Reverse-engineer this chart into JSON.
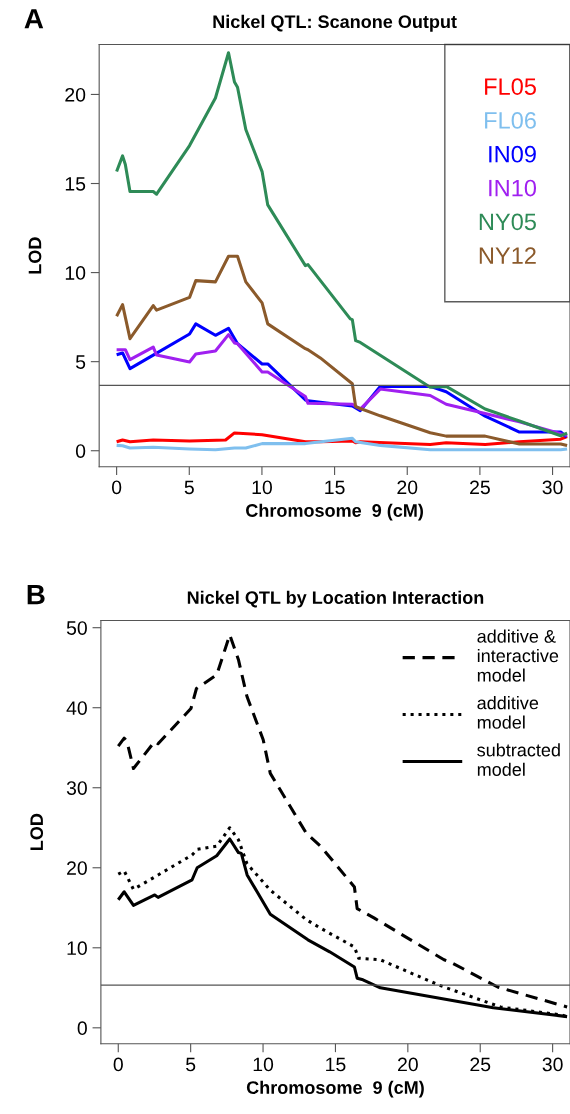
{
  "chart_data": [
    {
      "type": "line",
      "title": "Nickel QTL: Scanone Output",
      "xlabel": "Chromosome  9 (cM)",
      "ylabel": "LOD",
      "annotations": [
        "A"
      ],
      "xlim": [
        -1.2,
        31.2
      ],
      "xticks": [
        0,
        5,
        10,
        15,
        20,
        25,
        30
      ],
      "ylim": [
        -0.9,
        22.8
      ],
      "yticks": [
        0,
        5,
        10,
        15,
        20
      ],
      "grid": false,
      "legend": "top right",
      "line_style": "solid",
      "ref_lines": [
        {
          "axis": "y",
          "value": 3.67,
          "color": "#555555",
          "line_style": "solid"
        }
      ],
      "series": [
        {
          "name": "FL05",
          "color": "#ff0000",
          "x": [
            0,
            0.41,
            0.92,
            2.52,
            5.02,
            7.5,
            8.11,
            10.01,
            12.99,
            14.02,
            16.22,
            16.45,
            16.77,
            21.58,
            22.68,
            25.36,
            27.72,
            30.56,
            31.0
          ],
          "values": [
            0.5,
            0.6,
            0.5,
            0.6,
            0.55,
            0.6,
            1.0,
            0.9,
            0.5,
            0.5,
            0.55,
            0.45,
            0.5,
            0.35,
            0.45,
            0.35,
            0.5,
            0.65,
            0.8
          ]
        },
        {
          "name": "FL06",
          "color": "#7fbfee",
          "x": [
            0,
            0.41,
            0.92,
            2.52,
            5.02,
            6.8,
            8.11,
            8.89,
            10.01,
            10.4,
            12.99,
            16.22,
            16.45,
            18.14,
            21.58,
            25.36,
            30.56,
            31.0
          ],
          "values": [
            0.3,
            0.28,
            0.15,
            0.2,
            0.1,
            0.05,
            0.15,
            0.15,
            0.4,
            0.4,
            0.4,
            0.7,
            0.5,
            0.3,
            0.05,
            0.05,
            0.05,
            0.1
          ]
        },
        {
          "name": "IN09",
          "color": "#0000ff",
          "x": [
            0,
            0.41,
            0.92,
            2.52,
            5.02,
            5.45,
            6.8,
            7.7,
            8.32,
            10.01,
            10.4,
            12.99,
            13.17,
            14.02,
            16.22,
            16.77,
            18.14,
            21.58,
            22.68,
            25.36,
            27.72,
            30.56,
            30.97
          ],
          "values": [
            5.39,
            5.49,
            4.61,
            5.37,
            6.55,
            7.12,
            6.48,
            6.87,
            6.01,
            4.87,
            4.87,
            2.85,
            2.8,
            2.72,
            2.51,
            2.25,
            3.61,
            3.61,
            3.31,
            1.94,
            1.05,
            1.05,
            0.76
          ]
        },
        {
          "name": "IN10",
          "color": "#a020f0",
          "x": [
            0,
            0.6,
            0.92,
            2.52,
            2.75,
            5.02,
            5.45,
            6.8,
            7.7,
            8.11,
            8.32,
            10.01,
            10.4,
            12.99,
            13.17,
            16.22,
            16.77,
            18.14,
            21.58,
            22.68,
            25.36,
            27.72,
            30.56,
            31.0
          ],
          "values": [
            5.67,
            5.67,
            5.11,
            5.82,
            5.37,
            4.98,
            5.43,
            5.6,
            6.52,
            6.05,
            6.01,
            4.42,
            4.42,
            3.04,
            2.66,
            2.61,
            2.34,
            3.46,
            3.1,
            2.61,
            2.09,
            1.62,
            0.95,
            0.86
          ]
        },
        {
          "name": "NY05",
          "color": "#2e8b57",
          "x": [
            0,
            0.41,
            0.6,
            0.92,
            2.52,
            2.75,
            5.02,
            6.8,
            7.7,
            8.11,
            8.32,
            8.89,
            10.01,
            10.4,
            12.99,
            13.17,
            16.08,
            16.22,
            16.45,
            16.77,
            21.58,
            22.68,
            25.36,
            27.72,
            30.56,
            31.0
          ],
          "values": [
            15.67,
            16.55,
            16.07,
            14.55,
            14.55,
            14.4,
            17.13,
            19.8,
            22.34,
            20.7,
            20.4,
            18.03,
            15.67,
            13.8,
            10.39,
            10.45,
            7.4,
            7.36,
            6.18,
            6.08,
            3.56,
            3.61,
            2.34,
            1.67,
            0.84,
            0.99
          ]
        },
        {
          "name": "NY12",
          "color": "#8b5a2b",
          "x": [
            0,
            0.41,
            0.92,
            2.52,
            2.75,
            5.02,
            5.45,
            6.8,
            7.7,
            8.32,
            8.89,
            10.01,
            10.4,
            12.99,
            13.17,
            14.02,
            16.22,
            16.45,
            18.14,
            21.58,
            22.68,
            25.36,
            27.72,
            30.56,
            31.0
          ],
          "values": [
            7.55,
            8.2,
            6.29,
            8.15,
            7.89,
            8.61,
            9.55,
            9.48,
            10.92,
            10.92,
            9.48,
            8.3,
            7.12,
            5.73,
            5.67,
            5.21,
            3.76,
            2.47,
            1.96,
            1.01,
            0.82,
            0.82,
            0.38,
            0.38,
            0.29
          ]
        }
      ]
    },
    {
      "type": "line",
      "title": "Nickel QTL by Location Interaction",
      "xlabel": "Chromosome  9 (cM)",
      "ylabel": "LOD",
      "annotations": [
        "B"
      ],
      "xlim": [
        -1.2,
        31.2
      ],
      "xticks": [
        0,
        5,
        10,
        15,
        20,
        25,
        30
      ],
      "ylim": [
        -2.0,
        50.9
      ],
      "yticks": [
        0,
        10,
        20,
        30,
        40,
        50
      ],
      "grid": false,
      "legend": "top right",
      "ref_lines": [
        {
          "axis": "y",
          "value": 5.34,
          "color": "#555555",
          "line_style": "solid"
        }
      ],
      "series": [
        {
          "name": "additive & interactive model",
          "color": "#000000",
          "line_style": "dashed",
          "x": [
            0,
            0.41,
            0.6,
            1.05,
            2.52,
            2.75,
            5.02,
            5.4,
            6.8,
            7.7,
            8.3,
            8.89,
            10.01,
            10.5,
            12.99,
            14.02,
            16.31,
            16.5,
            17.69,
            22.5,
            22.96,
            26.2,
            31.0
          ],
          "values": [
            35.2,
            36.2,
            35.8,
            32.4,
            35.8,
            35.5,
            39.9,
            42.4,
            44.1,
            49.1,
            46.0,
            41.4,
            36.0,
            31.8,
            24.3,
            22.6,
            17.6,
            14.9,
            13.7,
            8.5,
            8.2,
            5.1,
            2.6
          ]
        },
        {
          "name": "additive model",
          "color": "#000000",
          "line_style": "dotted",
          "x": [
            0,
            0.41,
            1.05,
            2.75,
            5.1,
            5.45,
            6.8,
            7.7,
            8.3,
            8.89,
            10.5,
            13.0,
            14.02,
            16.31,
            16.6,
            18.1,
            22.2,
            26.4,
            30.6,
            31.0
          ],
          "values": [
            19.2,
            19.6,
            17.3,
            19.1,
            21.6,
            22.3,
            22.7,
            25.0,
            23.5,
            20.5,
            17.2,
            13.5,
            12.4,
            10.1,
            8.7,
            8.5,
            5.3,
            2.6,
            1.6,
            1.4
          ]
        },
        {
          "name": "subtracted model",
          "color": "#000000",
          "line_style": "solid",
          "x": [
            0,
            0.41,
            1.05,
            2.52,
            2.75,
            5.1,
            5.45,
            6.8,
            7.7,
            8.3,
            8.5,
            8.9,
            10.5,
            13.1,
            14.6,
            16.31,
            16.5,
            16.9,
            18.1,
            22.2,
            25.9,
            31.0
          ],
          "values": [
            16.0,
            17.0,
            15.3,
            16.6,
            16.3,
            18.5,
            20.0,
            21.5,
            23.6,
            21.9,
            21.8,
            19.1,
            14.2,
            11.0,
            9.5,
            7.6,
            6.2,
            6.0,
            5.0,
            3.7,
            2.5,
            1.4
          ]
        }
      ]
    }
  ]
}
